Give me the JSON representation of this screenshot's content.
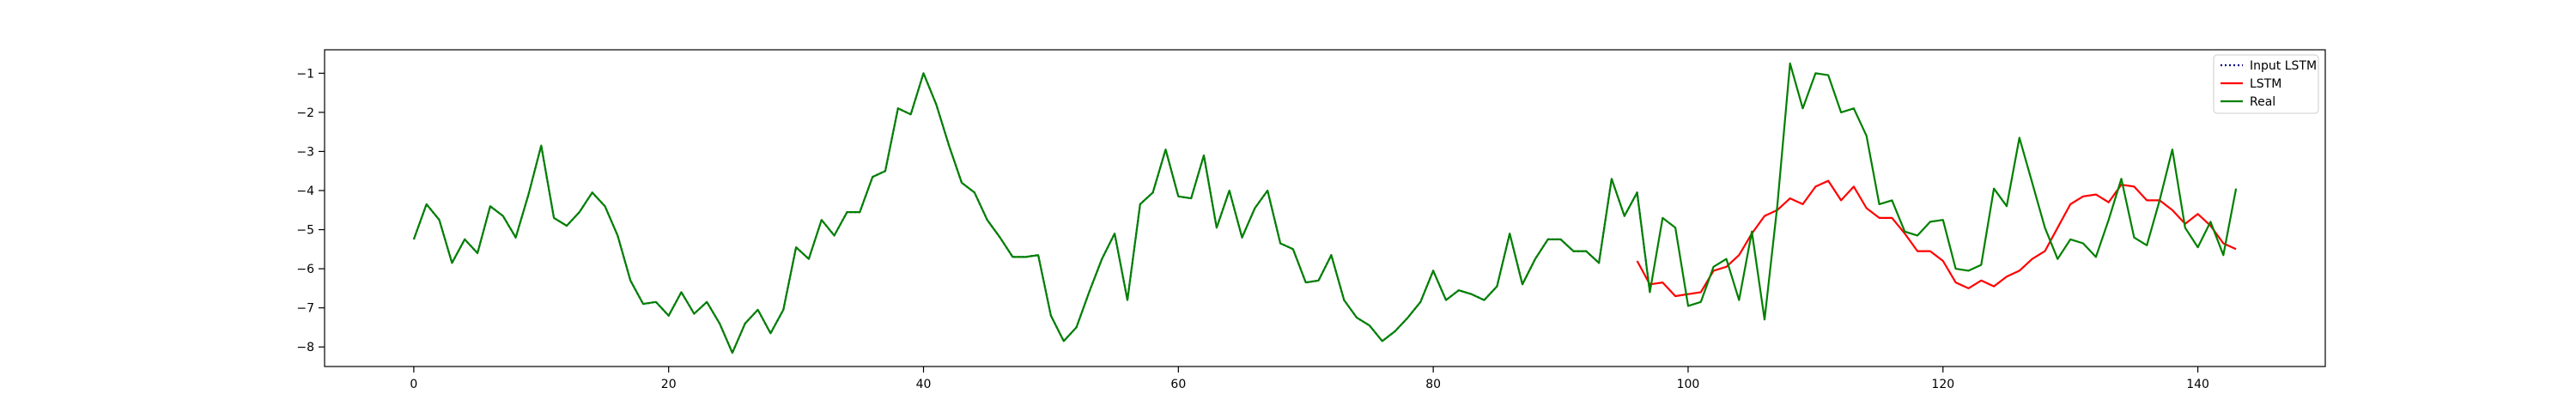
{
  "chart_data": {
    "type": "line",
    "title": "",
    "xlabel": "",
    "ylabel": "",
    "xlim": [
      -7,
      150
    ],
    "ylim": [
      -8.5,
      -0.4
    ],
    "xticks": [
      0,
      20,
      40,
      60,
      80,
      100,
      120,
      140
    ],
    "yticks": [
      -8,
      -7,
      -6,
      -5,
      -4,
      -3,
      -2,
      -1
    ],
    "grid": false,
    "legend_position": "top-right",
    "legend": [
      "Input LSTM",
      "LSTM",
      "Real"
    ],
    "series": [
      {
        "name": "Input LSTM",
        "color": "#00008b",
        "style": "dotted",
        "x0": 0,
        "values": [
          -5.25,
          -4.35,
          -4.75,
          -5.85,
          -5.25,
          -5.6,
          -4.4,
          -4.65,
          -5.2,
          -4.1,
          -2.85,
          -4.7,
          -4.9,
          -4.55,
          -4.05,
          -4.4,
          -5.15,
          -6.3,
          -6.9,
          -6.85,
          -7.2,
          -6.6,
          -7.15,
          -6.85,
          -7.4,
          -8.15,
          -7.4,
          -7.05,
          -7.65,
          -7.05,
          -5.45,
          -5.75,
          -4.75,
          -5.15,
          -4.55,
          -4.55,
          -3.65,
          -3.5,
          -1.9,
          -2.05,
          -1.0,
          -1.8,
          -2.85,
          -3.8,
          -4.05,
          -4.75,
          -5.2,
          -5.7,
          -5.7,
          -5.65,
          -7.2,
          -7.85,
          -7.5,
          -6.6,
          -5.75,
          -5.1,
          -6.8,
          -4.35,
          -4.05,
          -2.95,
          -4.15,
          -4.2,
          -3.1,
          -4.95,
          -4.0,
          -5.2,
          -4.45,
          -4.0,
          -5.35,
          -5.5,
          -6.35,
          -6.3,
          -5.65,
          -6.8,
          -7.25,
          -7.45,
          -7.85,
          -7.6,
          -7.25,
          -6.85,
          -6.05,
          -6.8,
          -6.55,
          -6.65,
          -6.8,
          -6.45,
          -5.1,
          -6.4,
          -5.75,
          -5.25,
          -5.25,
          -5.55,
          -5.55,
          -5.85,
          -3.7,
          -4.65,
          -4.05,
          -6.6
        ]
      },
      {
        "name": "LSTM",
        "color": "#ff0000",
        "style": "solid",
        "x0": 96,
        "values": [
          -5.8,
          -6.4,
          -6.35,
          -6.7,
          -6.65,
          -6.6,
          -6.05,
          -5.95,
          -5.65,
          -5.1,
          -4.65,
          -4.5,
          -4.2,
          -4.35,
          -3.9,
          -3.75,
          -4.25,
          -3.9,
          -4.45,
          -4.7,
          -4.7,
          -5.1,
          -5.55,
          -5.55,
          -5.8,
          -6.35,
          -6.5,
          -6.3,
          -6.45,
          -6.2,
          -6.05,
          -5.75,
          -5.55,
          -4.95,
          -4.35,
          -4.15,
          -4.1,
          -4.3,
          -3.85,
          -3.9,
          -4.25,
          -4.25,
          -4.5,
          -4.85,
          -4.6,
          -4.9,
          -5.35,
          -5.5
        ]
      },
      {
        "name": "Real",
        "color": "#008000",
        "style": "solid",
        "x0": 0,
        "values": [
          -5.25,
          -4.35,
          -4.75,
          -5.85,
          -5.25,
          -5.6,
          -4.4,
          -4.65,
          -5.2,
          -4.1,
          -2.85,
          -4.7,
          -4.9,
          -4.55,
          -4.05,
          -4.4,
          -5.15,
          -6.3,
          -6.9,
          -6.85,
          -7.2,
          -6.6,
          -7.15,
          -6.85,
          -7.4,
          -8.15,
          -7.4,
          -7.05,
          -7.65,
          -7.05,
          -5.45,
          -5.75,
          -4.75,
          -5.15,
          -4.55,
          -4.55,
          -3.65,
          -3.5,
          -1.9,
          -2.05,
          -1.0,
          -1.8,
          -2.85,
          -3.8,
          -4.05,
          -4.75,
          -5.2,
          -5.7,
          -5.7,
          -5.65,
          -7.2,
          -7.85,
          -7.5,
          -6.6,
          -5.75,
          -5.1,
          -6.8,
          -4.35,
          -4.05,
          -2.95,
          -4.15,
          -4.2,
          -3.1,
          -4.95,
          -4.0,
          -5.2,
          -4.45,
          -4.0,
          -5.35,
          -5.5,
          -6.35,
          -6.3,
          -5.65,
          -6.8,
          -7.25,
          -7.45,
          -7.85,
          -7.6,
          -7.25,
          -6.85,
          -6.05,
          -6.8,
          -6.55,
          -6.65,
          -6.8,
          -6.45,
          -5.1,
          -6.4,
          -5.75,
          -5.25,
          -5.25,
          -5.55,
          -5.55,
          -5.85,
          -3.7,
          -4.65,
          -4.05,
          -6.6,
          -4.7,
          -4.95,
          -6.95,
          -6.85,
          -5.95,
          -5.75,
          -6.8,
          -5.05,
          -7.3,
          -4.4,
          -0.75,
          -1.9,
          -1.0,
          -1.05,
          -2.0,
          -1.9,
          -2.6,
          -4.35,
          -4.25,
          -5.05,
          -5.15,
          -4.8,
          -4.75,
          -6.0,
          -6.05,
          -5.9,
          -3.95,
          -4.4,
          -2.65,
          -3.8,
          -4.95,
          -5.75,
          -5.25,
          -5.35,
          -5.7,
          -4.75,
          -3.7,
          -5.2,
          -5.4,
          -4.25,
          -2.95,
          -4.95,
          -5.45,
          -4.8,
          -5.65,
          -3.95
        ]
      }
    ]
  }
}
